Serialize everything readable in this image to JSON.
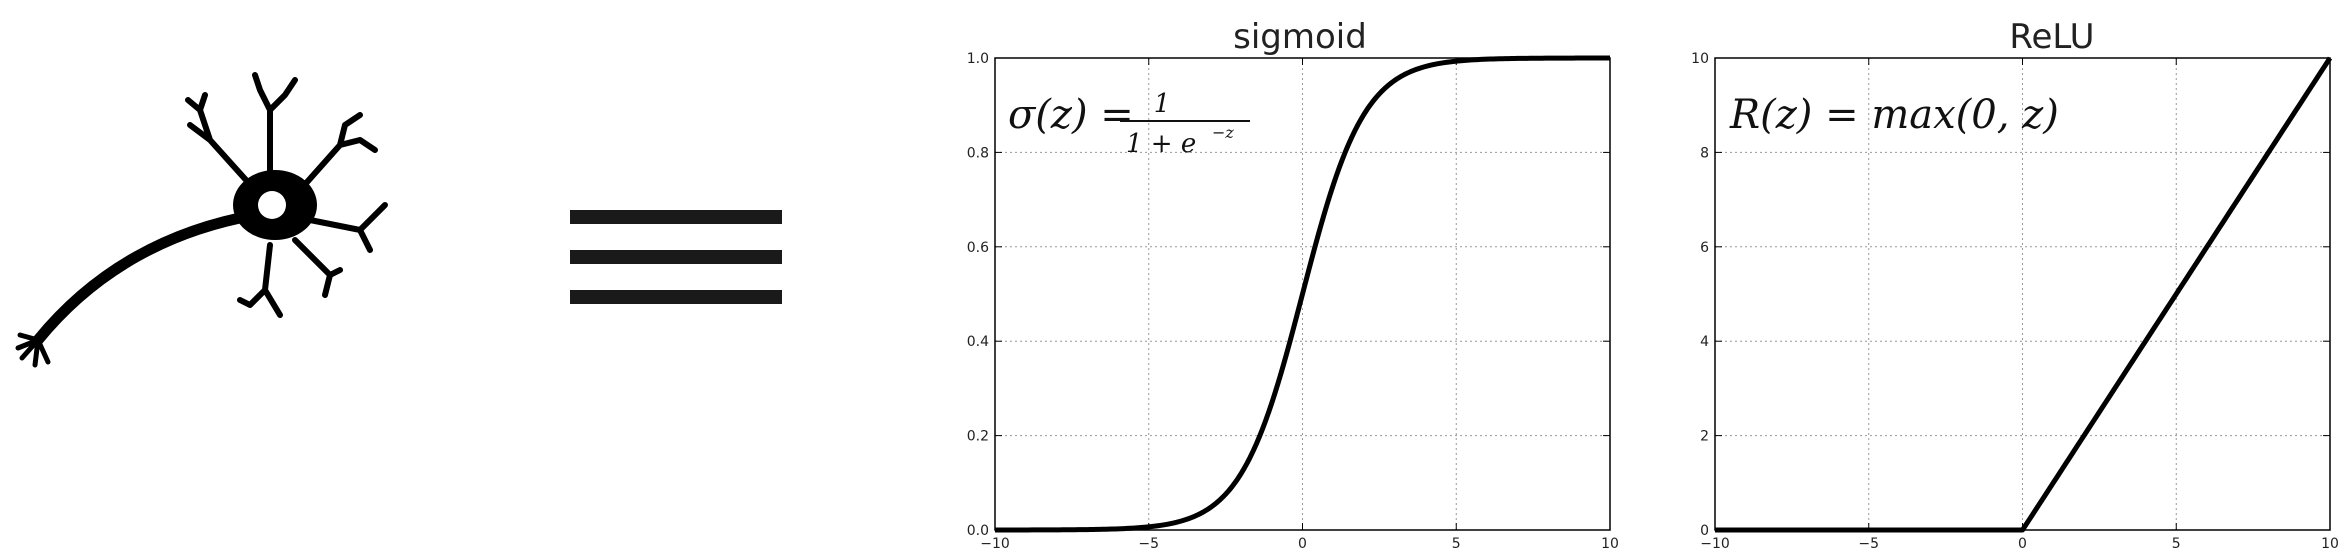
{
  "neuron": {
    "icon": "neuron-icon"
  },
  "equals": {
    "icon": "equals-icon"
  },
  "chart_data": [
    {
      "type": "line",
      "title": "sigmoid",
      "formula": {
        "lhs": "σ(z) =",
        "numerator": "1",
        "denominator": "1 + e",
        "exponent": "−z"
      },
      "xlim": [
        -10,
        10
      ],
      "ylim": [
        0,
        1
      ],
      "xticks": [
        -10,
        -5,
        0,
        5,
        10
      ],
      "xtick_labels": [
        "−10",
        "−5",
        "0",
        "5",
        "10"
      ],
      "yticks": [
        0,
        0.2,
        0.4,
        0.6,
        0.8,
        1.0
      ],
      "ytick_labels": [
        "0.0",
        "0.2",
        "0.4",
        "0.6",
        "0.8",
        "1.0"
      ],
      "grid": true,
      "series": [
        {
          "function": "sigmoid",
          "x": [
            -10,
            -8,
            -6,
            -5,
            -4,
            -3,
            -2,
            -1,
            0,
            1,
            2,
            3,
            4,
            5,
            6,
            8,
            10
          ],
          "y": [
            5e-05,
            0.0003,
            0.0025,
            0.0067,
            0.018,
            0.047,
            0.119,
            0.269,
            0.5,
            0.731,
            0.881,
            0.953,
            0.982,
            0.993,
            0.9975,
            0.9997,
            0.99995
          ]
        }
      ],
      "color": "#000000"
    },
    {
      "type": "line",
      "title": "ReLU",
      "formula": {
        "text": "R(z) = max(0,  z)"
      },
      "xlim": [
        -10,
        10
      ],
      "ylim": [
        0,
        10
      ],
      "xticks": [
        -10,
        -5,
        0,
        5,
        10
      ],
      "xtick_labels": [
        "−10",
        "−5",
        "0",
        "5",
        "10"
      ],
      "yticks": [
        0,
        2,
        4,
        6,
        8,
        10
      ],
      "ytick_labels": [
        "0",
        "2",
        "4",
        "6",
        "8",
        "10"
      ],
      "grid": true,
      "series": [
        {
          "function": "relu",
          "x": [
            -10,
            -5,
            0,
            5,
            10
          ],
          "y": [
            0,
            0,
            0,
            5,
            10
          ]
        }
      ],
      "color": "#000000"
    }
  ]
}
